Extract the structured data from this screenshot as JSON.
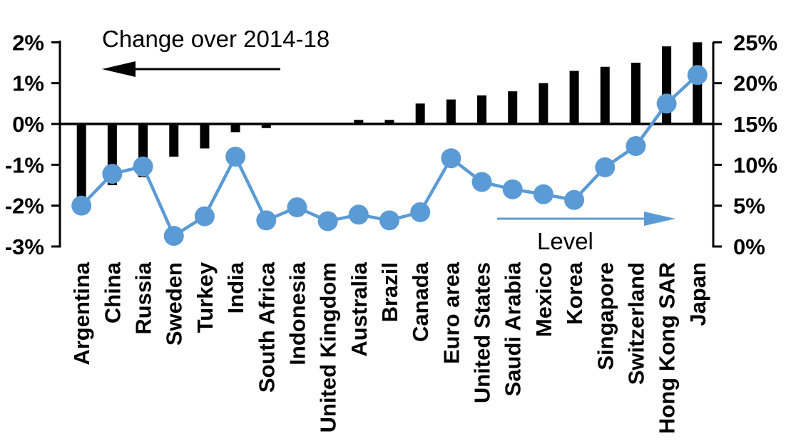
{
  "annotations": {
    "change_label": "Change over 2014-18",
    "level_label": "Level"
  },
  "colors": {
    "bar": "#000000",
    "line": "#5B9BD5",
    "background": "#FFFFFF",
    "text": "#000000"
  },
  "chart_data": {
    "type": "combo-bar-line-dual-axis",
    "categories": [
      "Argentina",
      "China",
      "Russia",
      "Sweden",
      "Turkey",
      "India",
      "South Africa",
      "Indonesia",
      "United Kingdom",
      "Australia",
      "Brazil",
      "Canada",
      "Euro area",
      "United States",
      "Saudi Arabia",
      "Mexico",
      "Korea",
      "Singapore",
      "Switzerland",
      "Hong Kong SAR",
      "Japan"
    ],
    "series": [
      {
        "name": "Change over 2014-18",
        "type": "bar",
        "axis": "left",
        "color": "#000000",
        "unit": "percentage points",
        "values": [
          -1.8,
          -1.5,
          -1.3,
          -0.8,
          -0.6,
          -0.2,
          -0.1,
          0.0,
          0.0,
          0.1,
          0.1,
          0.5,
          0.6,
          0.7,
          0.8,
          1.0,
          1.3,
          1.4,
          1.5,
          1.9,
          2.0
        ]
      },
      {
        "name": "Level",
        "type": "line",
        "axis": "right",
        "color": "#5B9BD5",
        "unit": "%",
        "values": [
          5.0,
          8.9,
          9.8,
          1.3,
          3.7,
          11.0,
          3.2,
          4.8,
          3.1,
          3.9,
          3.2,
          4.2,
          10.8,
          7.9,
          7.0,
          6.4,
          5.7,
          9.7,
          12.3,
          17.5,
          21.0
        ]
      }
    ],
    "left_axis": {
      "ticks": [
        "2%",
        "1%",
        "0%",
        "-1%",
        "-2%",
        "-3%"
      ],
      "tick_values": [
        2,
        1,
        0,
        -1,
        -2,
        -3
      ],
      "min": -3,
      "max": 2,
      "unit": "%"
    },
    "right_axis": {
      "ticks": [
        "25%",
        "20%",
        "15%",
        "10%",
        "5%",
        "0%"
      ],
      "tick_values": [
        25,
        20,
        15,
        10,
        5,
        0
      ],
      "min": 0,
      "max": 25,
      "unit": "%"
    },
    "grid": false,
    "legend_position": "in-plot annotations with arrows"
  }
}
